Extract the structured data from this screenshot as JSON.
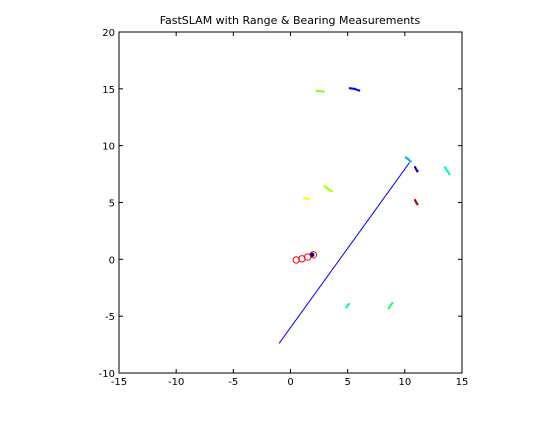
{
  "chart_data": {
    "type": "scatter",
    "title": "FastSLAM with Range & Bearing Measurements",
    "xlabel": "",
    "ylabel": "",
    "xlim": [
      -15,
      15
    ],
    "ylim": [
      -10,
      20
    ],
    "x_ticks": [
      -15,
      -10,
      -5,
      0,
      5,
      10,
      15
    ],
    "y_ticks": [
      -10,
      -5,
      0,
      5,
      10,
      15,
      20
    ],
    "grid": false,
    "legend": "none",
    "series": [
      {
        "kind": "line",
        "color": "#0000ff",
        "points": [
          [
            -1.0,
            -7.4
          ],
          [
            10.4,
            8.5
          ]
        ]
      },
      {
        "kind": "circles",
        "color": "#ff0000",
        "points": [
          [
            0.5,
            -0.05
          ],
          [
            1.0,
            0.05
          ],
          [
            1.5,
            0.2
          ],
          [
            2.0,
            0.4
          ]
        ]
      },
      {
        "kind": "dot",
        "color": "#00008b",
        "points": [
          [
            1.9,
            0.4
          ]
        ]
      },
      {
        "kind": "landmark_clusters",
        "clusters": [
          {
            "color": "#7fff3f",
            "points": [
              [
                2.3,
                14.8
              ],
              [
                2.6,
                14.8
              ],
              [
                2.9,
                14.75
              ]
            ]
          },
          {
            "color": "#0000ff",
            "points": [
              [
                5.2,
                15.05
              ],
              [
                5.6,
                15.0
              ],
              [
                6.0,
                14.85
              ]
            ]
          },
          {
            "color": "#00b0ff",
            "points": [
              [
                10.1,
                8.95
              ],
              [
                10.3,
                8.8
              ],
              [
                10.5,
                8.6
              ]
            ]
          },
          {
            "color": "#0000c8",
            "points": [
              [
                10.9,
                8.1
              ],
              [
                11.0,
                7.9
              ],
              [
                11.1,
                7.75
              ]
            ]
          },
          {
            "color": "#00ffcc",
            "points": [
              [
                13.5,
                8.1
              ],
              [
                13.7,
                7.8
              ],
              [
                13.9,
                7.5
              ]
            ]
          },
          {
            "color": "#c00000",
            "points": [
              [
                10.9,
                5.2
              ],
              [
                11.0,
                5.0
              ],
              [
                11.1,
                4.85
              ]
            ]
          },
          {
            "color": "#aaff00",
            "points": [
              [
                3.0,
                6.4
              ],
              [
                3.3,
                6.2
              ],
              [
                3.6,
                6.0
              ]
            ]
          },
          {
            "color": "#ffff00",
            "points": [
              [
                1.2,
                5.4
              ],
              [
                1.4,
                5.35
              ],
              [
                1.6,
                5.3
              ]
            ]
          },
          {
            "color": "#00ff99",
            "points": [
              [
                4.9,
                -4.2
              ],
              [
                5.0,
                -4.05
              ],
              [
                5.1,
                -3.95
              ]
            ]
          },
          {
            "color": "#33ff66",
            "points": [
              [
                8.6,
                -4.3
              ],
              [
                8.75,
                -4.05
              ],
              [
                8.9,
                -3.85
              ]
            ]
          }
        ]
      }
    ]
  }
}
